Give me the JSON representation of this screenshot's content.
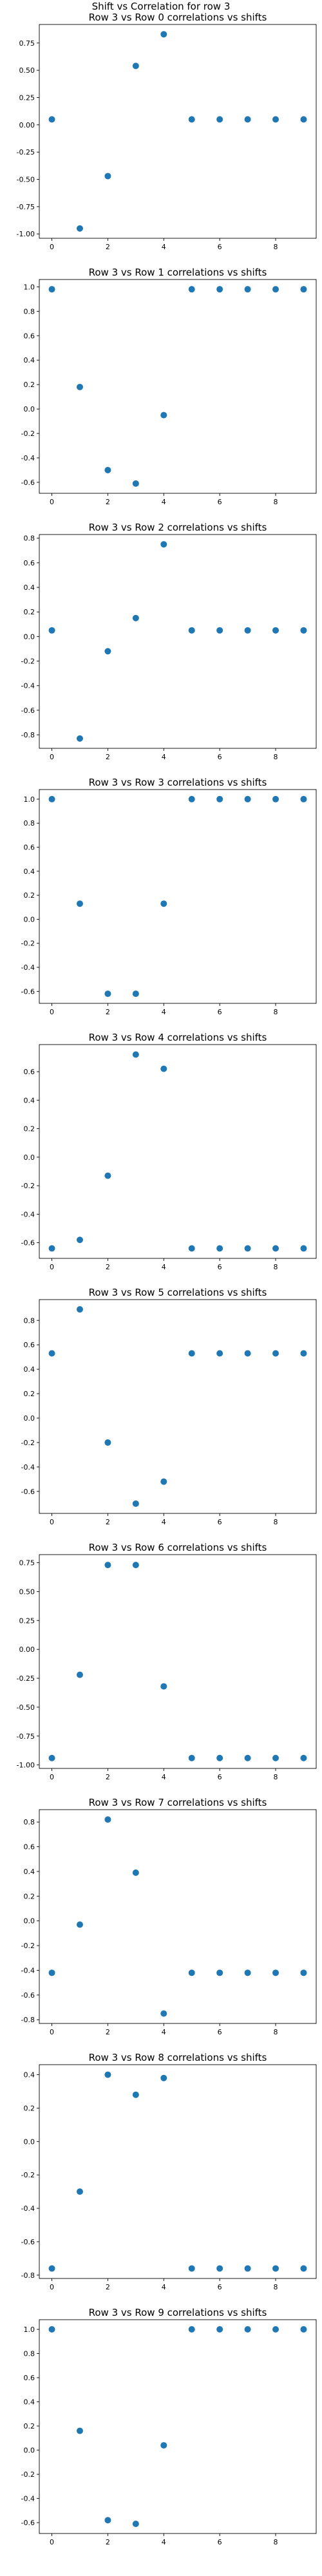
{
  "suptitle": "Shift vs Correlation for row 3",
  "marker_color": "#1f77b4",
  "chart_data": [
    {
      "type": "scatter",
      "title": "Row 3 vs Row 0 correlations vs shifts",
      "x": [
        0,
        1,
        2,
        3,
        4,
        5,
        6,
        7,
        8,
        9
      ],
      "y": [
        0.05,
        -0.95,
        -0.47,
        0.54,
        0.83,
        0.05,
        0.05,
        0.05,
        0.05,
        0.05
      ],
      "ylim": [
        -1.04,
        0.92
      ],
      "xticks": [
        0,
        2,
        4,
        6,
        8
      ],
      "yticks": [
        -1.0,
        -0.75,
        -0.5,
        -0.25,
        0.0,
        0.25,
        0.5,
        0.75
      ],
      "ytick_labels": [
        "-1.00",
        "-0.75",
        "-0.50",
        "-0.25",
        "0.00",
        "0.25",
        "0.50",
        "0.75"
      ],
      "grid": false
    },
    {
      "type": "scatter",
      "title": "Row 3 vs Row 1 correlations vs shifts",
      "x": [
        0,
        1,
        2,
        3,
        4,
        5,
        6,
        7,
        8,
        9
      ],
      "y": [
        0.98,
        0.18,
        -0.5,
        -0.61,
        -0.05,
        0.98,
        0.98,
        0.98,
        0.98,
        0.98
      ],
      "ylim": [
        -0.69,
        1.06
      ],
      "xticks": [
        0,
        2,
        4,
        6,
        8
      ],
      "yticks": [
        -0.6,
        -0.4,
        -0.2,
        0.0,
        0.2,
        0.4,
        0.6,
        0.8,
        1.0
      ],
      "ytick_labels": [
        "-0.6",
        "-0.4",
        "-0.2",
        "0.0",
        "0.2",
        "0.4",
        "0.6",
        "0.8",
        "1.0"
      ],
      "grid": false
    },
    {
      "type": "scatter",
      "title": "Row 3 vs Row 2 correlations vs shifts",
      "x": [
        0,
        1,
        2,
        3,
        4,
        5,
        6,
        7,
        8,
        9
      ],
      "y": [
        0.05,
        -0.83,
        -0.12,
        0.15,
        0.75,
        0.05,
        0.05,
        0.05,
        0.05,
        0.05
      ],
      "ylim": [
        -0.91,
        0.83
      ],
      "xticks": [
        0,
        2,
        4,
        6,
        8
      ],
      "yticks": [
        -0.8,
        -0.6,
        -0.4,
        -0.2,
        0.0,
        0.2,
        0.4,
        0.6,
        0.8
      ],
      "ytick_labels": [
        "-0.8",
        "-0.6",
        "-0.4",
        "-0.2",
        "0.0",
        "0.2",
        "0.4",
        "0.6",
        "0.8"
      ],
      "grid": false
    },
    {
      "type": "scatter",
      "title": "Row 3 vs Row 3 correlations vs shifts",
      "x": [
        0,
        1,
        2,
        3,
        4,
        5,
        6,
        7,
        8,
        9
      ],
      "y": [
        1.0,
        0.13,
        -0.62,
        -0.62,
        0.13,
        1.0,
        1.0,
        1.0,
        1.0,
        1.0
      ],
      "ylim": [
        -0.7,
        1.08
      ],
      "xticks": [
        0,
        2,
        4,
        6,
        8
      ],
      "yticks": [
        -0.6,
        -0.4,
        -0.2,
        0.0,
        0.2,
        0.4,
        0.6,
        0.8,
        1.0
      ],
      "ytick_labels": [
        "-0.6",
        "-0.4",
        "-0.2",
        "0.0",
        "0.2",
        "0.4",
        "0.6",
        "0.8",
        "1.0"
      ],
      "grid": false
    },
    {
      "type": "scatter",
      "title": "Row 3 vs Row 4 correlations vs shifts",
      "x": [
        0,
        1,
        2,
        3,
        4,
        5,
        6,
        7,
        8,
        9
      ],
      "y": [
        -0.64,
        -0.58,
        -0.13,
        0.72,
        0.62,
        -0.64,
        -0.64,
        -0.64,
        -0.64,
        -0.64
      ],
      "ylim": [
        -0.71,
        0.79
      ],
      "xticks": [
        0,
        2,
        4,
        6,
        8
      ],
      "yticks": [
        -0.6,
        -0.4,
        -0.2,
        0.0,
        0.2,
        0.4,
        0.6
      ],
      "ytick_labels": [
        "-0.6",
        "-0.4",
        "-0.2",
        "0.0",
        "0.2",
        "0.4",
        "0.6"
      ],
      "grid": false
    },
    {
      "type": "scatter",
      "title": "Row 3 vs Row 5 correlations vs shifts",
      "x": [
        0,
        1,
        2,
        3,
        4,
        5,
        6,
        7,
        8,
        9
      ],
      "y": [
        0.53,
        0.89,
        -0.2,
        -0.7,
        -0.52,
        0.53,
        0.53,
        0.53,
        0.53,
        0.53
      ],
      "ylim": [
        -0.78,
        0.97
      ],
      "xticks": [
        0,
        2,
        4,
        6,
        8
      ],
      "yticks": [
        -0.6,
        -0.4,
        -0.2,
        0.0,
        0.2,
        0.4,
        0.6,
        0.8
      ],
      "ytick_labels": [
        "-0.6",
        "-0.4",
        "-0.2",
        "0.0",
        "0.2",
        "0.4",
        "0.6",
        "0.8"
      ],
      "grid": false
    },
    {
      "type": "scatter",
      "title": "Row 3 vs Row 6 correlations vs shifts",
      "x": [
        0,
        1,
        2,
        3,
        4,
        5,
        6,
        7,
        8,
        9
      ],
      "y": [
        -0.94,
        -0.22,
        0.73,
        0.73,
        -0.32,
        -0.94,
        -0.94,
        -0.94,
        -0.94,
        -0.94
      ],
      "ylim": [
        -1.03,
        0.82
      ],
      "xticks": [
        0,
        2,
        4,
        6,
        8
      ],
      "yticks": [
        -1.0,
        -0.75,
        -0.5,
        -0.25,
        0.0,
        0.25,
        0.5,
        0.75
      ],
      "ytick_labels": [
        "-1.00",
        "-0.75",
        "-0.50",
        "-0.25",
        "0.00",
        "0.25",
        "0.50",
        "0.75"
      ],
      "grid": false
    },
    {
      "type": "scatter",
      "title": "Row 3 vs Row 7 correlations vs shifts",
      "x": [
        0,
        1,
        2,
        3,
        4,
        5,
        6,
        7,
        8,
        9
      ],
      "y": [
        -0.42,
        -0.03,
        0.82,
        0.39,
        -0.75,
        -0.42,
        -0.42,
        -0.42,
        -0.42,
        -0.42
      ],
      "ylim": [
        -0.83,
        0.9
      ],
      "xticks": [
        0,
        2,
        4,
        6,
        8
      ],
      "yticks": [
        -0.8,
        -0.6,
        -0.4,
        -0.2,
        0.0,
        0.2,
        0.4,
        0.6,
        0.8
      ],
      "ytick_labels": [
        "-0.8",
        "-0.6",
        "-0.4",
        "-0.2",
        "0.0",
        "0.2",
        "0.4",
        "0.6",
        "0.8"
      ],
      "grid": false
    },
    {
      "type": "scatter",
      "title": "Row 3 vs Row 8 correlations vs shifts",
      "x": [
        0,
        1,
        2,
        3,
        4,
        5,
        6,
        7,
        8,
        9
      ],
      "y": [
        -0.76,
        -0.3,
        0.4,
        0.28,
        0.38,
        -0.76,
        -0.76,
        -0.76,
        -0.76,
        -0.76
      ],
      "ylim": [
        -0.82,
        0.46
      ],
      "xticks": [
        0,
        2,
        4,
        6,
        8
      ],
      "yticks": [
        -0.8,
        -0.6,
        -0.4,
        -0.2,
        0.0,
        0.2,
        0.4
      ],
      "ytick_labels": [
        "-0.8",
        "-0.6",
        "-0.4",
        "-0.2",
        "0.0",
        "0.2",
        "0.4"
      ],
      "grid": false
    },
    {
      "type": "scatter",
      "title": "Row 3 vs Row 9 correlations vs shifts",
      "x": [
        0,
        1,
        2,
        3,
        4,
        5,
        6,
        7,
        8,
        9
      ],
      "y": [
        1.0,
        0.16,
        -0.58,
        -0.61,
        0.04,
        1.0,
        1.0,
        1.0,
        1.0,
        1.0
      ],
      "ylim": [
        -0.69,
        1.08
      ],
      "xticks": [
        0,
        2,
        4,
        6,
        8
      ],
      "yticks": [
        -0.6,
        -0.4,
        -0.2,
        0.0,
        0.2,
        0.4,
        0.6,
        0.8,
        1.0
      ],
      "ytick_labels": [
        "-0.6",
        "-0.4",
        "-0.2",
        "0.0",
        "0.2",
        "0.4",
        "0.6",
        "0.8",
        "1.0"
      ],
      "grid": false
    }
  ]
}
